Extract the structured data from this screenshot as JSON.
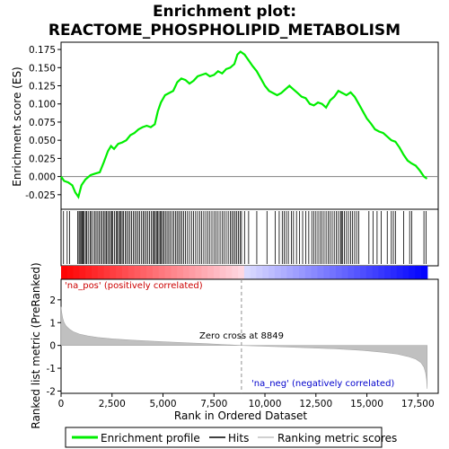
{
  "chart_data": {
    "type": "line",
    "title_line1": "Enrichment plot:",
    "title_line2": "REACTOME_PHOSPHOLIPID_METABOLISM",
    "es_panel": {
      "ylabel": "Enrichment score (ES)",
      "ylim": [
        -0.045,
        0.185
      ],
      "yticks": [
        -0.025,
        0.0,
        0.025,
        0.05,
        0.075,
        0.1,
        0.125,
        0.15,
        0.175
      ],
      "ytick_labels": [
        "-0.025",
        "0.000",
        "0.025",
        "0.050",
        "0.075",
        "0.100",
        "0.125",
        "0.150",
        "0.175"
      ],
      "series_name": "Enrichment profile",
      "color": "#00ee00",
      "x": [
        0,
        150,
        350,
        550,
        700,
        850,
        1000,
        1200,
        1450,
        1650,
        1900,
        2100,
        2300,
        2450,
        2600,
        2800,
        3000,
        3200,
        3400,
        3600,
        3800,
        4000,
        4200,
        4400,
        4600,
        4750,
        4900,
        5100,
        5300,
        5500,
        5700,
        5900,
        6100,
        6300,
        6500,
        6700,
        6900,
        7100,
        7300,
        7500,
        7700,
        7900,
        8100,
        8300,
        8500,
        8650,
        8800,
        9000,
        9200,
        9400,
        9600,
        9800,
        10000,
        10200,
        10400,
        10600,
        10800,
        11000,
        11200,
        11400,
        11600,
        11800,
        12000,
        12200,
        12400,
        12600,
        12800,
        13000,
        13200,
        13400,
        13600,
        13800,
        14000,
        14200,
        14400,
        14600,
        14800,
        15000,
        15200,
        15400,
        15600,
        15800,
        16000,
        16200,
        16400,
        16600,
        16800,
        17000,
        17200,
        17400,
        17600,
        17800,
        17950
      ],
      "y": [
        0.0,
        -0.006,
        -0.008,
        -0.012,
        -0.022,
        -0.028,
        -0.012,
        -0.004,
        0.002,
        0.004,
        0.006,
        0.02,
        0.035,
        0.042,
        0.038,
        0.045,
        0.047,
        0.05,
        0.057,
        0.06,
        0.065,
        0.068,
        0.07,
        0.068,
        0.072,
        0.09,
        0.102,
        0.112,
        0.115,
        0.118,
        0.13,
        0.135,
        0.133,
        0.128,
        0.132,
        0.138,
        0.14,
        0.142,
        0.138,
        0.14,
        0.145,
        0.142,
        0.148,
        0.15,
        0.155,
        0.168,
        0.172,
        0.168,
        0.16,
        0.152,
        0.145,
        0.135,
        0.125,
        0.118,
        0.115,
        0.112,
        0.115,
        0.12,
        0.125,
        0.12,
        0.115,
        0.11,
        0.108,
        0.1,
        0.098,
        0.102,
        0.1,
        0.095,
        0.105,
        0.11,
        0.118,
        0.115,
        0.112,
        0.116,
        0.11,
        0.1,
        0.09,
        0.08,
        0.073,
        0.065,
        0.062,
        0.06,
        0.055,
        0.05,
        0.048,
        0.04,
        0.03,
        0.022,
        0.018,
        0.015,
        0.008,
        0.0,
        -0.003
      ]
    },
    "hits": {
      "series_name": "Hits",
      "color": "#000000",
      "positions": [
        120,
        300,
        420,
        820,
        880,
        930,
        980,
        1030,
        1080,
        1130,
        1200,
        1260,
        1330,
        1420,
        1480,
        1560,
        1650,
        1720,
        1800,
        1870,
        1950,
        2020,
        2100,
        2160,
        2220,
        2290,
        2360,
        2430,
        2480,
        2540,
        2620,
        2700,
        2760,
        2820,
        2880,
        2940,
        3000,
        3060,
        3150,
        3220,
        3300,
        3380,
        3460,
        3540,
        3620,
        3700,
        3780,
        3860,
        3950,
        4030,
        4100,
        4180,
        4260,
        4340,
        4420,
        4500,
        4560,
        4620,
        4680,
        4740,
        4800,
        4860,
        4920,
        4980,
        5050,
        5120,
        5200,
        5280,
        5360,
        5450,
        5530,
        5610,
        5690,
        5770,
        5850,
        5930,
        6010,
        6100,
        6200,
        6300,
        6400,
        6500,
        6600,
        6700,
        6800,
        6900,
        7000,
        7100,
        7200,
        7300,
        7400,
        7500,
        7600,
        7700,
        7800,
        7900,
        8000,
        8100,
        8200,
        8300,
        8380,
        8460,
        8540,
        8620,
        8700,
        8780,
        8850,
        9000,
        9200,
        9600,
        10100,
        10500,
        10700,
        10850,
        10950,
        11050,
        11150,
        11300,
        11400,
        11550,
        11700,
        11850,
        12000,
        12150,
        12300,
        12400,
        12500,
        12600,
        12700,
        12800,
        12900,
        13000,
        13100,
        13200,
        13300,
        13400,
        13500,
        13600,
        13700,
        13750,
        13800,
        13900,
        14000,
        14100,
        14200,
        14300,
        14400,
        14500,
        14600,
        15100,
        15300,
        15500,
        15700,
        16000,
        16200,
        16300,
        16400,
        16800,
        17100,
        17200,
        17800,
        17900
      ]
    },
    "metric_panel": {
      "ylabel": "Ranked list metric (PreRanked)",
      "ylim": [
        -2.1,
        2.9
      ],
      "yticks": [
        -2,
        -1,
        0,
        1,
        2
      ],
      "ytick_labels": [
        "-2",
        "-1",
        "0",
        "1",
        "2"
      ],
      "series_name": "Ranking metric scores",
      "color": "#c0c0c0",
      "x": [
        0,
        30,
        80,
        150,
        250,
        400,
        600,
        900,
        1300,
        1800,
        2500,
        3500,
        5000,
        7000,
        8849,
        10500,
        12000,
        13500,
        14800,
        15800,
        16500,
        17000,
        17400,
        17650,
        17800,
        17880,
        17930,
        17960
      ],
      "y": [
        1.7,
        1.45,
        1.2,
        1.0,
        0.85,
        0.72,
        0.6,
        0.5,
        0.42,
        0.35,
        0.29,
        0.23,
        0.16,
        0.08,
        0.0,
        -0.05,
        -0.1,
        -0.15,
        -0.22,
        -0.3,
        -0.38,
        -0.48,
        -0.6,
        -0.75,
        -0.95,
        -1.2,
        -1.5,
        -1.9
      ]
    },
    "xlabel": "Rank in Ordered Dataset",
    "xlim": [
      0,
      18500
    ],
    "xticks": [
      0,
      2500,
      5000,
      7500,
      10000,
      12500,
      15000,
      17500
    ],
    "xtick_labels": [
      "0",
      "2,500",
      "5,000",
      "7,500",
      "10,000",
      "12,500",
      "15,000",
      "17,500"
    ],
    "zero_cross": 8849,
    "zero_cross_label": "Zero cross at 8849",
    "pos_label": "'na_pos' (positively correlated)",
    "neg_label": "'na_neg' (negatively correlated)",
    "pos_label_color": "#cc0000",
    "neg_label_color": "#0000cc",
    "legend": [
      {
        "name": "Enrichment profile",
        "color": "#00ee00"
      },
      {
        "name": "Hits",
        "color": "#000000"
      },
      {
        "name": "Ranking metric scores",
        "color": "#c0c0c0"
      }
    ],
    "legend_placement": "bottom",
    "grid": false
  }
}
